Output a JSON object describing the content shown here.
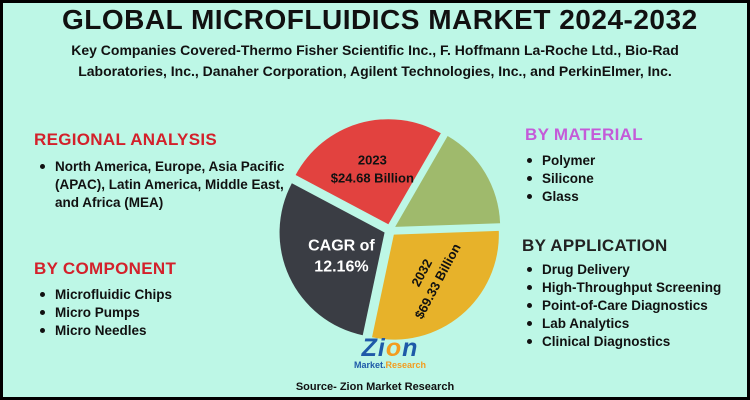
{
  "title": "GLOBAL MICROFLUIDICS MARKET 2024-2032",
  "subtitle_line1": "Key Companies Covered-Thermo Fisher Scientific Inc., F. Hoffmann La-Roche Ltd., Bio-Rad",
  "subtitle_line2": "Laboratories, Inc., Danaher Corporation, Agilent Technologies, Inc., and PerkinElmer, Inc.",
  "regional": {
    "heading": "REGIONAL ANALYSIS",
    "items": [
      "North America, Europe, Asia Pacific (APAC), Latin America, Middle East, and Africa (MEA)"
    ]
  },
  "component": {
    "heading": "BY COMPONENT",
    "items": [
      "Microfluidic Chips",
      "Micro Pumps",
      "Micro Needles"
    ]
  },
  "material": {
    "heading": "BY MATERIAL",
    "items": [
      "Polymer",
      "Silicone",
      "Glass"
    ]
  },
  "application": {
    "heading": "BY APPLICATION",
    "items": [
      "Drug Delivery",
      "High-Throughput Screening",
      "Point-of-Care Diagnostics",
      "Lab Analytics",
      "Clinical Diagnostics"
    ]
  },
  "logo": {
    "brand": "Zion",
    "sub": "Market.Research"
  },
  "source": "Source- Zion Market Research",
  "colors": {
    "background": "#bdf7e6",
    "red": "#e2423f",
    "green": "#9fba6c",
    "yellow": "#e7b22a",
    "dark": "#3a3d44",
    "heading_red": "#d3212b",
    "heading_purple": "#c45bd8"
  },
  "chart_data": {
    "type": "pie",
    "slices": [
      {
        "label_line1": "2023",
        "label_line2": "$24.68 Billion",
        "color": "#e2423f",
        "start_deg": -62,
        "end_deg": 30
      },
      {
        "label_line1": "",
        "label_line2": "",
        "color": "#9fba6c",
        "start_deg": 30,
        "end_deg": 88
      },
      {
        "label_line1": "2032",
        "label_line2": "$69.33 Billion",
        "color": "#e7b22a",
        "start_deg": 88,
        "end_deg": 192
      },
      {
        "label_line1": "CAGR of",
        "label_line2": "12.16%",
        "color": "#3a3d44",
        "start_deg": 192,
        "end_deg": 298
      }
    ],
    "values": {
      "2023": 24.68,
      "2032": 69.33,
      "cagr_percent": 12.16
    },
    "unit": "Billion"
  }
}
